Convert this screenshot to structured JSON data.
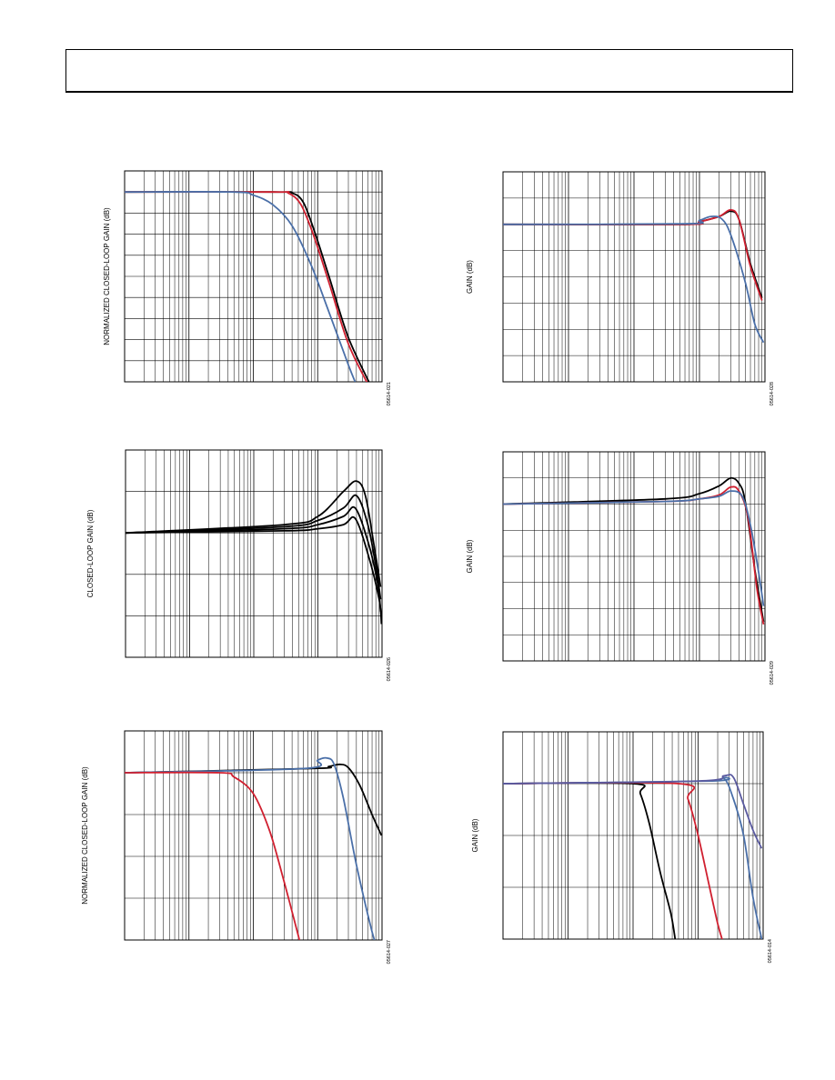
{
  "header": {
    "title": ""
  },
  "chart_data": [
    {
      "id": "p1",
      "type": "line",
      "ylabel": "NORMALIZED CLOSED-LOOP GAIN (dB)",
      "figure_code": "05614-021",
      "xscale": "log",
      "xlim": [
        0.1,
        1000
      ],
      "ylim": [
        -9,
        1
      ],
      "grid": true,
      "series": [
        {
          "color": "#000000",
          "points": [
            [
              0.1,
              0
            ],
            [
              20,
              0
            ],
            [
              40,
              -0.05
            ],
            [
              60,
              -0.5
            ],
            [
              90,
              -1.9
            ],
            [
              150,
              -4
            ],
            [
              300,
              -6.9
            ],
            [
              700,
              -9.3
            ]
          ]
        },
        {
          "color": "#d02030",
          "points": [
            [
              0.1,
              0
            ],
            [
              20,
              0
            ],
            [
              35,
              -0.05
            ],
            [
              55,
              -0.6
            ],
            [
              85,
              -2
            ],
            [
              150,
              -4.3
            ],
            [
              300,
              -7.2
            ],
            [
              650,
              -9.3
            ]
          ]
        },
        {
          "color": "#4a6fa8",
          "points": [
            [
              0.1,
              0
            ],
            [
              5,
              0
            ],
            [
              10,
              -0.15
            ],
            [
              20,
              -0.6
            ],
            [
              40,
              -1.6
            ],
            [
              80,
              -3.5
            ],
            [
              150,
              -5.7
            ],
            [
              300,
              -8.2
            ],
            [
              420,
              -9.3
            ]
          ]
        }
      ]
    },
    {
      "id": "p2",
      "type": "line",
      "ylabel": "GAIN (dB)",
      "figure_code": "05614-028",
      "xscale": "log",
      "xlim": [
        0.1,
        1000
      ],
      "ylim": [
        -6,
        2
      ],
      "grid": true,
      "series": [
        {
          "color": "#000000",
          "points": [
            [
              0.1,
              0
            ],
            [
              60,
              0
            ],
            [
              100,
              0.1
            ],
            [
              200,
              0.3
            ],
            [
              300,
              0.5
            ],
            [
              400,
              0.2
            ],
            [
              600,
              -1.5
            ],
            [
              900,
              -2.8
            ]
          ]
        },
        {
          "color": "#d02030",
          "points": [
            [
              0.1,
              0
            ],
            [
              60,
              0
            ],
            [
              100,
              0.1
            ],
            [
              200,
              0.3
            ],
            [
              300,
              0.55
            ],
            [
              400,
              0.2
            ],
            [
              600,
              -1.6
            ],
            [
              900,
              -2.9
            ]
          ]
        },
        {
          "color": "#4a6fa8",
          "points": [
            [
              0.1,
              0
            ],
            [
              60,
              0.02
            ],
            [
              100,
              0.15
            ],
            [
              150,
              0.3
            ],
            [
              220,
              0.2
            ],
            [
              300,
              -0.4
            ],
            [
              500,
              -2.2
            ],
            [
              700,
              -3.8
            ],
            [
              950,
              -4.5
            ]
          ]
        }
      ]
    },
    {
      "id": "p3",
      "type": "line",
      "ylabel": "CLOSED-LOOP GAIN (dB)",
      "figure_code": "05614-026",
      "xscale": "log",
      "xlim": [
        0.1,
        1000
      ],
      "ylim": [
        -3,
        2
      ],
      "grid": true,
      "series": [
        {
          "color": "#000000",
          "points": [
            [
              0.1,
              0
            ],
            [
              30,
              0.2
            ],
            [
              100,
              0.4
            ],
            [
              250,
              1
            ],
            [
              400,
              1.25
            ],
            [
              550,
              0.9
            ],
            [
              750,
              -0.3
            ],
            [
              950,
              -1.3
            ]
          ]
        },
        {
          "color": "#000000",
          "points": [
            [
              0.1,
              0
            ],
            [
              30,
              0.15
            ],
            [
              100,
              0.3
            ],
            [
              250,
              0.6
            ],
            [
              400,
              0.9
            ],
            [
              600,
              0.2
            ],
            [
              800,
              -0.8
            ],
            [
              950,
              -1.6
            ]
          ]
        },
        {
          "color": "#000000",
          "points": [
            [
              0.1,
              0
            ],
            [
              30,
              0.1
            ],
            [
              100,
              0.2
            ],
            [
              250,
              0.4
            ],
            [
              380,
              0.6
            ],
            [
              600,
              -0.2
            ],
            [
              850,
              -1.2
            ],
            [
              950,
              -1.9
            ]
          ]
        },
        {
          "color": "#000000",
          "points": [
            [
              0.1,
              0
            ],
            [
              30,
              0.05
            ],
            [
              100,
              0.1
            ],
            [
              250,
              0.2
            ],
            [
              380,
              0.35
            ],
            [
              600,
              -0.5
            ],
            [
              900,
              -1.6
            ],
            [
              980,
              -2.2
            ]
          ]
        }
      ]
    },
    {
      "id": "p4",
      "type": "line",
      "ylabel": "GAIN (dB)",
      "figure_code": "05614-029",
      "xscale": "log",
      "xlim": [
        0.1,
        1000
      ],
      "ylim": [
        -6,
        2
      ],
      "grid": true,
      "series": [
        {
          "color": "#000000",
          "points": [
            [
              0.1,
              0
            ],
            [
              30,
              0.2
            ],
            [
              100,
              0.4
            ],
            [
              200,
              0.7
            ],
            [
              300,
              1
            ],
            [
              400,
              0.8
            ],
            [
              500,
              0.1
            ],
            [
              700,
              -2.5
            ],
            [
              950,
              -4.5
            ]
          ]
        },
        {
          "color": "#d02030",
          "points": [
            [
              0.1,
              0
            ],
            [
              30,
              0.1
            ],
            [
              100,
              0.2
            ],
            [
              200,
              0.35
            ],
            [
              300,
              0.65
            ],
            [
              400,
              0.5
            ],
            [
              550,
              -0.5
            ],
            [
              750,
              -3.2
            ],
            [
              950,
              -4.6
            ]
          ]
        },
        {
          "color": "#4a6fa8",
          "points": [
            [
              0.1,
              0
            ],
            [
              30,
              0.1
            ],
            [
              100,
              0.2
            ],
            [
              200,
              0.3
            ],
            [
              300,
              0.5
            ],
            [
              450,
              0.3
            ],
            [
              600,
              -0.8
            ],
            [
              800,
              -2.6
            ],
            [
              950,
              -3.9
            ]
          ]
        }
      ]
    },
    {
      "id": "p5",
      "type": "line",
      "ylabel": "NORMALIZED CLOSED-LOOP GAIN (dB)",
      "figure_code": "05614-027",
      "xscale": "log",
      "xlim": [
        0.1,
        1000
      ],
      "ylim": [
        -4,
        1
      ],
      "grid": true,
      "series": [
        {
          "color": "#000000",
          "points": [
            [
              0.1,
              0
            ],
            [
              80,
              0.1
            ],
            [
              150,
              0.15
            ],
            [
              220,
              0.2
            ],
            [
              300,
              0.12
            ],
            [
              450,
              -0.3
            ],
            [
              700,
              -1.0
            ],
            [
              980,
              -1.5
            ]
          ]
        },
        {
          "color": "#4a6fa8",
          "points": [
            [
              0.1,
              0
            ],
            [
              60,
              0.1
            ],
            [
              100,
              0.3
            ],
            [
              140,
              0.35
            ],
            [
              180,
              0.2
            ],
            [
              250,
              -0.6
            ],
            [
              400,
              -2.2
            ],
            [
              700,
              -3.8
            ],
            [
              900,
              -4.3
            ]
          ]
        },
        {
          "color": "#d02030",
          "points": [
            [
              0.1,
              0
            ],
            [
              3,
              0
            ],
            [
              5,
              -0.1
            ],
            [
              10,
              -0.5
            ],
            [
              18,
              -1.4
            ],
            [
              30,
              -2.6
            ],
            [
              50,
              -3.9
            ],
            [
              60,
              -4.4
            ]
          ]
        }
      ]
    },
    {
      "id": "p6",
      "type": "line",
      "ylabel": "GAIN (dB)",
      "figure_code": "05614-014",
      "xscale": "log",
      "xlim": [
        0.1,
        1000
      ],
      "ylim": [
        -3,
        1
      ],
      "grid": true,
      "series": [
        {
          "color": "#000000",
          "points": [
            [
              0.1,
              0
            ],
            [
              10,
              0
            ],
            [
              13,
              -0.2
            ],
            [
              18,
              -0.8
            ],
            [
              26,
              -1.7
            ],
            [
              38,
              -2.5
            ],
            [
              45,
              -3.05
            ]
          ]
        },
        {
          "color": "#d02030",
          "points": [
            [
              0.1,
              0
            ],
            [
              50,
              0
            ],
            [
              70,
              -0.3
            ],
            [
              100,
              -1.0
            ],
            [
              150,
              -2.0
            ],
            [
              200,
              -2.7
            ],
            [
              240,
              -3.05
            ]
          ]
        },
        {
          "color": "#4a6fa8",
          "points": [
            [
              0.1,
              0
            ],
            [
              150,
              0.05
            ],
            [
              250,
              0.1
            ],
            [
              350,
              -0.3
            ],
            [
              500,
              -1.0
            ],
            [
              700,
              -2.2
            ],
            [
              950,
              -3.0
            ]
          ]
        },
        {
          "color": "#5a5aa0",
          "points": [
            [
              0.1,
              0
            ],
            [
              100,
              0.05
            ],
            [
              250,
              0.15
            ],
            [
              350,
              0.12
            ],
            [
              500,
              -0.4
            ],
            [
              700,
              -0.9
            ],
            [
              950,
              -1.25
            ]
          ]
        }
      ]
    }
  ]
}
